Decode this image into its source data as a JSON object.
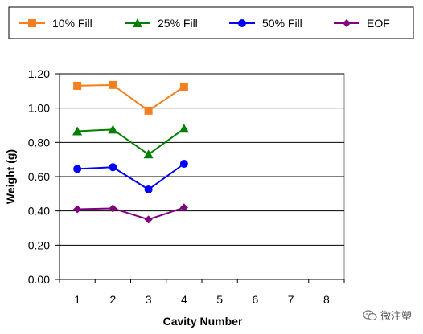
{
  "chart_data": {
    "type": "line",
    "xlabel": "Cavity Number",
    "ylabel": "Weight (g)",
    "x_ticks": [
      1,
      2,
      3,
      4,
      5,
      6,
      7,
      8
    ],
    "x_range": [
      0.5,
      8.5
    ],
    "ylim": [
      0,
      1.2
    ],
    "y_ticks": [
      "0.00",
      "0.20",
      "0.40",
      "0.60",
      "0.80",
      "1.00",
      "1.20"
    ],
    "grid": "horizontal",
    "legend_position": "top",
    "series": [
      {
        "name": "10% Fill",
        "color": "#F47F20",
        "marker": "square",
        "x": [
          1,
          2,
          3,
          4
        ],
        "values": [
          1.13,
          1.135,
          0.985,
          1.125
        ]
      },
      {
        "name": "25% Fill",
        "color": "#008000",
        "marker": "triangle",
        "x": [
          1,
          2,
          3,
          4
        ],
        "values": [
          0.865,
          0.875,
          0.73,
          0.88
        ]
      },
      {
        "name": "50% Fill",
        "color": "#0000FF",
        "marker": "circle",
        "x": [
          1,
          2,
          3,
          4
        ],
        "values": [
          0.645,
          0.655,
          0.525,
          0.675
        ]
      },
      {
        "name": "EOF",
        "color": "#800080",
        "marker": "diamond",
        "x": [
          1,
          2,
          3,
          4
        ],
        "values": [
          0.41,
          0.415,
          0.35,
          0.42
        ]
      }
    ]
  },
  "watermark": {
    "text": "微注塑",
    "icon": "wechat-icon"
  }
}
